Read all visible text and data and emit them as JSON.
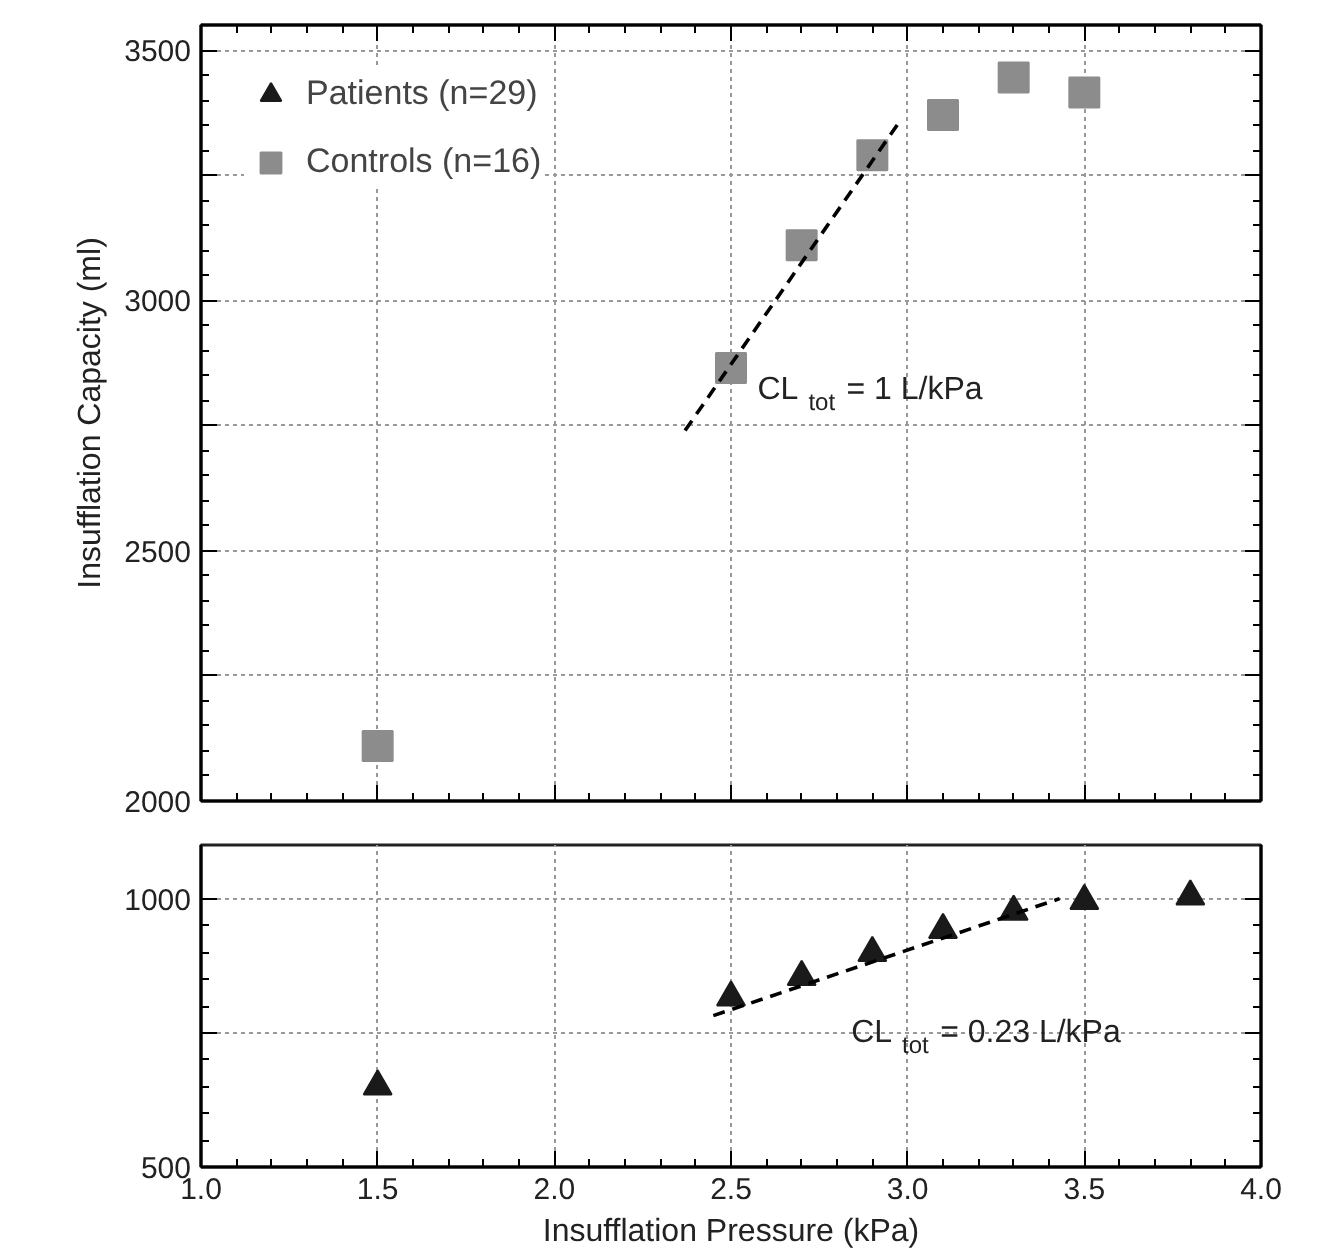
{
  "chart_data": [
    {
      "type": "scatter",
      "ylabel": "Insufflation Capacity (ml)",
      "xlim": [
        1.0,
        4.0
      ],
      "xticks": [
        {
          "value": 1.0,
          "label": null
        },
        {
          "value": 1.5,
          "label": null
        },
        {
          "value": 2.0,
          "label": null
        },
        {
          "value": 2.5,
          "label": null
        },
        {
          "value": 3.0,
          "label": null
        },
        {
          "value": 3.5,
          "label": null
        },
        {
          "value": 4.0,
          "label": null
        }
      ],
      "ylim": [
        2000,
        3550
      ],
      "yticks": [
        2000,
        {
          "value": 2250,
          "label": null
        },
        2500,
        {
          "value": 2750,
          "label": null
        },
        3000,
        {
          "value": 3250,
          "label": null
        },
        3500
      ],
      "grid": true,
      "tick_labels": "y",
      "legend": "top left",
      "series": [
        {
          "name": "Controls (n=16)",
          "color": "#8c8c8c",
          "marker": "square",
          "x": [
            1.5,
            2.5,
            2.7,
            2.9,
            3.1,
            3.3,
            3.5
          ],
          "values": [
            2110,
            2865,
            3110,
            3290,
            3370,
            3445,
            3415
          ]
        },
        {
          "type": "line",
          "color": "#000000",
          "line_style": "dashed",
          "x": [
            2.37,
            2.98
          ],
          "values": [
            2740,
            3360
          ]
        }
      ],
      "annotations": [
        "CL $_{tot}$ = 1 L/kPa"
      ]
    },
    {
      "type": "scatter",
      "xlabel": "Insufflation Pressure (kPa)",
      "xlim": [
        1.0,
        4.0
      ],
      "xticks": [
        {
          "value": 1.0,
          "label": "1.0"
        },
        {
          "value": 1.5,
          "label": "1.5"
        },
        {
          "value": 2.0,
          "label": "2.0"
        },
        {
          "value": 2.5,
          "label": "2.5"
        },
        {
          "value": 3.0,
          "label": "3.0"
        },
        {
          "value": 3.5,
          "label": "3.5"
        },
        {
          "value": 4.0,
          "label": "4.0"
        }
      ],
      "ylim": [
        500,
        1100
      ],
      "yticks": [
        500,
        {
          "value": 750,
          "label": null
        },
        1000
      ],
      "grid": true,
      "series": [
        {
          "name": "Patients (n=29)",
          "color": "#1a1a1a",
          "marker": "triangle",
          "x": [
            1.5,
            2.5,
            2.7,
            2.9,
            3.1,
            3.3,
            3.5,
            3.8
          ],
          "values": [
            650,
            816,
            854,
            899,
            942,
            976,
            996,
            1004
          ]
        },
        {
          "type": "line",
          "color": "#000000",
          "line_style": "dashed",
          "x": [
            2.45,
            3.43
          ],
          "values": [
            782,
            1000
          ]
        }
      ],
      "annotations": [
        "CL $_{tot}$ = 0.23 L/kPa"
      ]
    }
  ]
}
